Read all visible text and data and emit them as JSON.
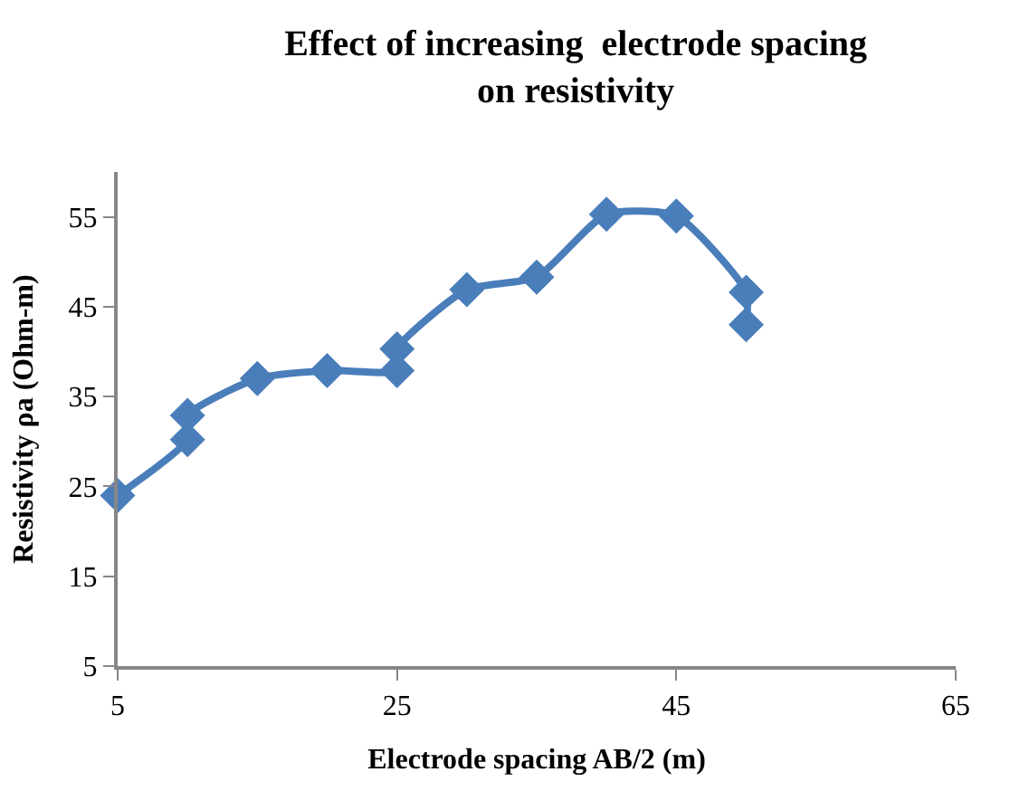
{
  "chart_data": {
    "type": "line",
    "title": "Effect of increasing  electrode spacing on resistivity",
    "xlabel": "Electrode spacing AB/2 (m)",
    "ylabel": "Resistivity ρa (Ohm-m)",
    "x": [
      5,
      10,
      10,
      15,
      20,
      25,
      25,
      30,
      35,
      40,
      45,
      50,
      50
    ],
    "series": [
      {
        "color": "#4a7ebb",
        "values": [
          24.0,
          30.2,
          32.9,
          37.0,
          37.9,
          37.9,
          40.3,
          46.9,
          48.3,
          55.3,
          55.1,
          46.6,
          43.0
        ]
      }
    ],
    "xlim": [
      5,
      65
    ],
    "xticks": [
      5,
      25,
      45,
      65
    ],
    "ylim": [
      5,
      60
    ],
    "yticks": [
      5,
      15,
      25,
      35,
      45,
      55
    ],
    "legend": false,
    "marker": "diamond",
    "line_style": "solid"
  }
}
